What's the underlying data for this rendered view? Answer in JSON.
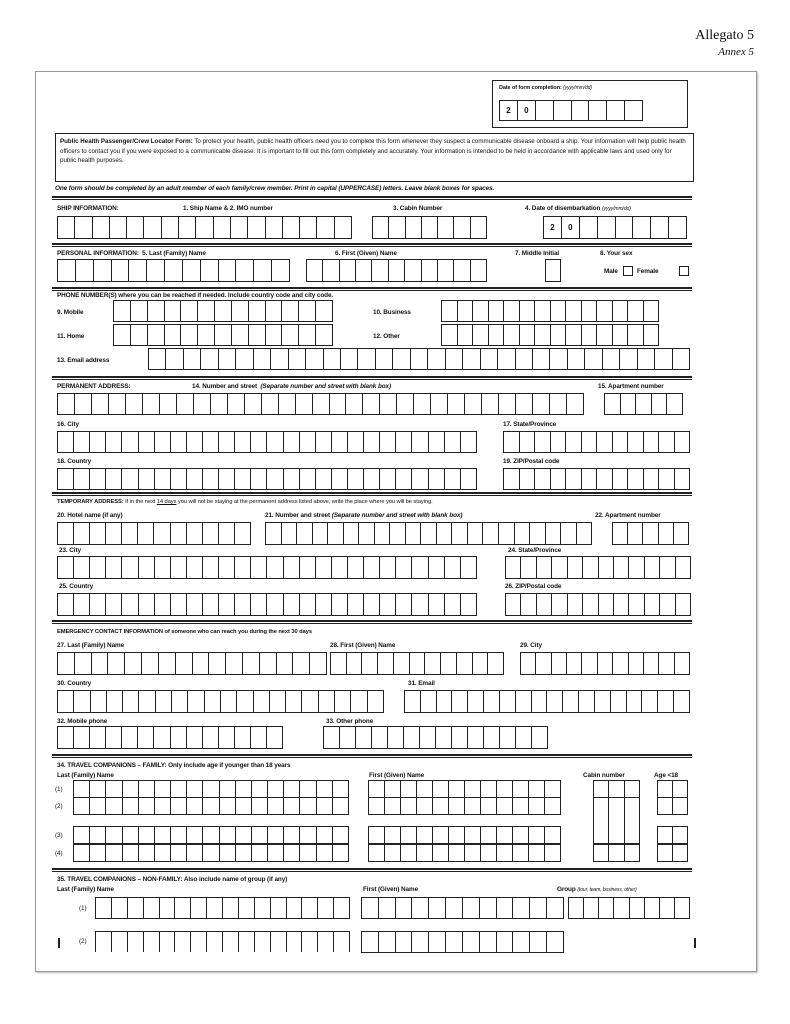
{
  "annex": {
    "it": "Allegato 5",
    "en": "Annex  5"
  },
  "date_completion": {
    "label": "Date of form completion:",
    "format": "(yyyy/mm/dd)",
    "prefill": [
      "2",
      "0"
    ]
  },
  "intro": {
    "title": "Public Health Passenger/Crew Locator Form:",
    "text": " To protect your health, public health officers need you to complete this form whenever they suspect a communicable disease onboard a ship. Your information will help public health officers to contact you if you were exposed to a communicable disease. It is important to fill out this form completely and accurately. Your information is intended to be held in accordance with applicable laws and used only for public health purposes."
  },
  "instruction": "One form should be completed by an adult member of each family/crew member.  Print in capital (UPPERCASE) letters. Leave blank boxes for spaces.",
  "ship": {
    "header": "SHIP INFORMATION:",
    "name": "1. Ship Name & 2. IMO number",
    "cabin": "3. Cabin Number",
    "disembark": "4. Date of disembarkation",
    "format": "(yyyy/mm/dd)",
    "prefill": [
      "2",
      "0"
    ]
  },
  "personal": {
    "header": "PERSONAL INFORMATION:",
    "last": "5. Last (Family) Name",
    "first": "6. First (Given) Name",
    "middle": "7. Middle Initial",
    "sex": "8. Your sex",
    "male": "Male",
    "female": "Female"
  },
  "phone": {
    "header": "PHONE NUMBER(S) where you can be reached if needed. Include country code and city code.",
    "mobile": "9. Mobile",
    "business": "10. Business",
    "home": "11. Home",
    "other": "12. Other",
    "email": "13. Email address"
  },
  "permanent": {
    "header": "PERMANENT ADDRESS:",
    "street": "14. Number and street",
    "street_note": "(Separate number and street with blank box)",
    "apt": "15. Apartment number",
    "city": "16. City",
    "state": "17. State/Province",
    "country": "18. Country",
    "zip": "19. ZIP/Postal code"
  },
  "temporary": {
    "header": "TEMPORARY ADDRESS:",
    "note_a": " If in the next ",
    "note_days": "14 days",
    "note_b": " you will not be staying at the permanent address listed above, write the place where you will be staying.",
    "hotel": "20. Hotel name (if any)",
    "street": "21. Number and street",
    "street_note": "(Separate number and street with blank box)",
    "apt": "22. Apartment number",
    "city": "23. City",
    "state": "24. State/Province",
    "country": "25. Country",
    "zip": "26. ZIP/Postal code"
  },
  "emergency": {
    "header": "EMERGENCY CONTACT INFORMATION of someone who can reach you during the next 30 days",
    "last": "27. Last (Family) Name",
    "first": "28. First (Given) Name",
    "city": "29. City",
    "country": "30. Country",
    "email": "31. Email",
    "mobile": "32. Mobile phone",
    "other": "33. Other phone"
  },
  "family": {
    "header": "34. TRAVEL COMPANIONS – FAMILY:  Only include age if younger than 18 years",
    "last": "Last (Family) Name",
    "first": "First (Given) Name",
    "cabin": "Cabin number",
    "age": "Age <18",
    "rows": [
      "(1)",
      "(2)",
      "(3)",
      "(4)"
    ]
  },
  "nonfamily": {
    "header": "35. TRAVEL COMPANIONS – NON-FAMILY:  Also include name of group (if any)",
    "last": "Last (Family) Name",
    "first": "First (Given) Name",
    "group": "Group",
    "group_note": "(tour, team, business, other)",
    "rows": [
      "(1)",
      "(2)"
    ]
  }
}
